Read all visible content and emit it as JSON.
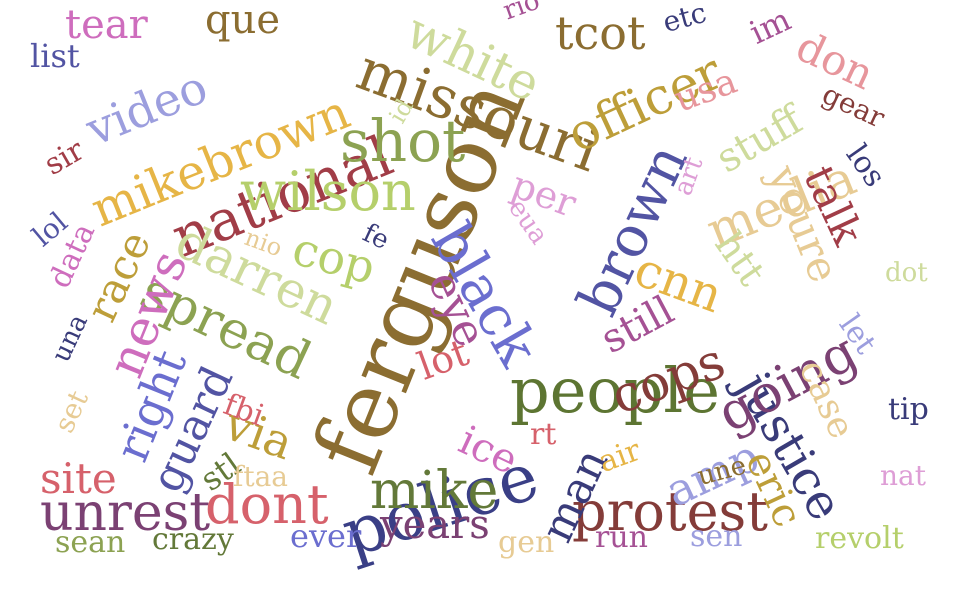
{
  "words": [
    {
      "text": "ferguson",
      "color": "#8b6d31",
      "rotated": true
    },
    {
      "text": "police",
      "color": "#3a3f86",
      "rotated": false
    },
    {
      "text": "people",
      "color": "#5d7532",
      "rotated": false
    },
    {
      "text": "missouri",
      "color": "#8b6d31",
      "rotated": false
    },
    {
      "text": "national",
      "color": "#a13d47",
      "rotated": false
    },
    {
      "text": "mikebrown",
      "color": "#e6b546",
      "rotated": false
    },
    {
      "text": "wilson",
      "color": "#b5cf6b",
      "rotated": false
    },
    {
      "text": "shot",
      "color": "#8ca252",
      "rotated": false
    },
    {
      "text": "white",
      "color": "#cedb9c",
      "rotated": false
    },
    {
      "text": "officer",
      "color": "#bd9e39",
      "rotated": false
    },
    {
      "text": "brown",
      "color": "#5254a3",
      "rotated": true
    },
    {
      "text": "black",
      "color": "#6b6ecf",
      "rotated": true
    },
    {
      "text": "media",
      "color": "#e7cb94",
      "rotated": false
    },
    {
      "text": "youre",
      "color": "#e7cb94",
      "rotated": true
    },
    {
      "text": "justice",
      "color": "#393b79",
      "rotated": true
    },
    {
      "text": "going",
      "color": "#7b4173",
      "rotated": false
    },
    {
      "text": "protest",
      "color": "#843c39",
      "rotated": false
    },
    {
      "text": "mike",
      "color": "#637939",
      "rotated": false
    },
    {
      "text": "unrest",
      "color": "#7b4173",
      "rotated": false
    },
    {
      "text": "dont",
      "color": "#d6616b",
      "rotated": false
    },
    {
      "text": "spread",
      "color": "#8ca252",
      "rotated": false
    },
    {
      "text": "darren",
      "color": "#cedb9c",
      "rotated": false
    },
    {
      "text": "video",
      "color": "#9c9ede",
      "rotated": false
    },
    {
      "text": "news",
      "color": "#ce6dbd",
      "rotated": true
    },
    {
      "text": "right",
      "color": "#6b6ecf",
      "rotated": true
    },
    {
      "text": "guard",
      "color": "#5254a3",
      "rotated": true
    },
    {
      "text": "cops",
      "color": "#843c39",
      "rotated": false
    },
    {
      "text": "amp",
      "color": "#9c9ede",
      "rotated": false
    },
    {
      "text": "man",
      "color": "#393b79",
      "rotated": true
    },
    {
      "text": "cnn",
      "color": "#e6b546",
      "rotated": false
    },
    {
      "text": "still",
      "color": "#a55194",
      "rotated": false
    },
    {
      "text": "eye",
      "color": "#a55194",
      "rotated": false
    },
    {
      "text": "stuff",
      "color": "#cedb9c",
      "rotated": false
    },
    {
      "text": "talk",
      "color": "#a13d47",
      "rotated": true
    },
    {
      "text": "race",
      "color": "#bd9e39",
      "rotated": false
    },
    {
      "text": "cop",
      "color": "#b5cf6b",
      "rotated": false
    },
    {
      "text": "via",
      "color": "#bd9e39",
      "rotated": false
    },
    {
      "text": "eric",
      "color": "#bd9e39",
      "rotated": true
    },
    {
      "text": "case",
      "color": "#e7cb94",
      "rotated": true
    },
    {
      "text": "site",
      "color": "#d6616b",
      "rotated": false
    },
    {
      "text": "years",
      "color": "#7b4173",
      "rotated": false
    },
    {
      "text": "tcot",
      "color": "#8b6d31",
      "rotated": false
    },
    {
      "text": "don",
      "color": "#e7969c",
      "rotated": false
    },
    {
      "text": "usa",
      "color": "#e7969c",
      "rotated": false
    },
    {
      "text": "per",
      "color": "#de9ed6",
      "rotated": false
    },
    {
      "text": "htt",
      "color": "#cedb9c",
      "rotated": false
    },
    {
      "text": "lot",
      "color": "#d6616b",
      "rotated": false
    },
    {
      "text": "ice",
      "color": "#ce6dbd",
      "rotated": false
    },
    {
      "text": "que",
      "color": "#8b6d31",
      "rotated": false
    },
    {
      "text": "tear",
      "color": "#ce6dbd",
      "rotated": false
    },
    {
      "text": "list",
      "color": "#5254a3",
      "rotated": false
    },
    {
      "text": "sir",
      "color": "#a13d47",
      "rotated": false
    },
    {
      "text": "lol",
      "color": "#5254a3",
      "rotated": false
    },
    {
      "text": "data",
      "color": "#ce6dbd",
      "rotated": true
    },
    {
      "text": "una",
      "color": "#393b79",
      "rotated": true
    },
    {
      "text": "set",
      "color": "#e7cb94",
      "rotated": true
    },
    {
      "text": "stl",
      "color": "#637939",
      "rotated": false
    },
    {
      "text": "fbi",
      "color": "#d6616b",
      "rotated": false
    },
    {
      "text": "nio",
      "color": "#e7cb94",
      "rotated": false
    },
    {
      "text": "fe",
      "color": "#393b79",
      "rotated": false
    },
    {
      "text": "id",
      "color": "#cedb9c",
      "rotated": false
    },
    {
      "text": "rio",
      "color": "#a55194",
      "rotated": false
    },
    {
      "text": "etc",
      "color": "#393b79",
      "rotated": false
    },
    {
      "text": "im",
      "color": "#a55194",
      "rotated": false
    },
    {
      "text": "gear",
      "color": "#843c39",
      "rotated": false
    },
    {
      "text": "los",
      "color": "#393b79",
      "rotated": false
    },
    {
      "text": "art",
      "color": "#de9ed6",
      "rotated": true
    },
    {
      "text": "eua",
      "color": "#de9ed6",
      "rotated": false
    },
    {
      "text": "dot",
      "color": "#cedb9c",
      "rotated": false
    },
    {
      "text": "let",
      "color": "#9c9ede",
      "rotated": false
    },
    {
      "text": "tip",
      "color": "#393b79",
      "rotated": false
    },
    {
      "text": "nat",
      "color": "#de9ed6",
      "rotated": false
    },
    {
      "text": "revolt",
      "color": "#b5cf6b",
      "rotated": false
    },
    {
      "text": "sen",
      "color": "#9c9ede",
      "rotated": false
    },
    {
      "text": "une",
      "color": "#8b6d31",
      "rotated": false
    },
    {
      "text": "air",
      "color": "#e6b546",
      "rotated": false
    },
    {
      "text": "rt",
      "color": "#d6616b",
      "rotated": false
    },
    {
      "text": "run",
      "color": "#a55194",
      "rotated": false
    },
    {
      "text": "gen",
      "color": "#e7cb94",
      "rotated": false
    },
    {
      "text": "ever",
      "color": "#6b6ecf",
      "rotated": false
    },
    {
      "text": "crazy",
      "color": "#637939",
      "rotated": false
    },
    {
      "text": "sean",
      "color": "#8ca252",
      "rotated": false
    },
    {
      "text": "ftaa",
      "color": "#e7cb94",
      "rotated": false
    }
  ]
}
